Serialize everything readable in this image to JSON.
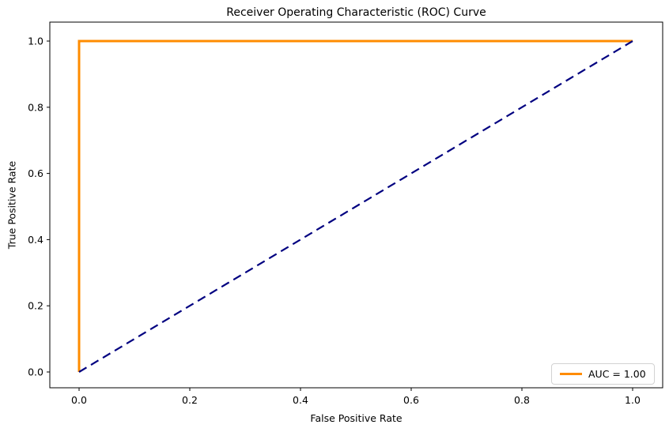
{
  "chart_data": {
    "type": "line",
    "title": "Receiver Operating Characteristic (ROC) Curve",
    "xlabel": "False Positive Rate",
    "ylabel": "True Positive Rate",
    "xlim": [
      0,
      1
    ],
    "ylim": [
      0,
      1
    ],
    "xticks": [
      "0.0",
      "0.2",
      "0.4",
      "0.6",
      "0.8",
      "1.0"
    ],
    "yticks": [
      "0.0",
      "0.2",
      "0.4",
      "0.6",
      "0.8",
      "1.0"
    ],
    "grid": false,
    "legend_position": "lower right",
    "auc": "1.00",
    "legend": {
      "label": "AUC = 1.00"
    },
    "colors": {
      "roc_curve": "#ff8c00",
      "chance_line": "#000080",
      "legend_border": "#d2d2d2"
    },
    "series": [
      {
        "name": "roc-curve",
        "label": "AUC = 1.00",
        "color": "#ff8c00",
        "style": "solid",
        "width": 3,
        "x": [
          0,
          0,
          1
        ],
        "y": [
          0,
          1,
          1
        ]
      },
      {
        "name": "chance-diagonal",
        "label": null,
        "color": "#000080",
        "style": "dashed",
        "width": 2.2,
        "x": [
          0,
          1
        ],
        "y": [
          0,
          1
        ]
      }
    ]
  }
}
